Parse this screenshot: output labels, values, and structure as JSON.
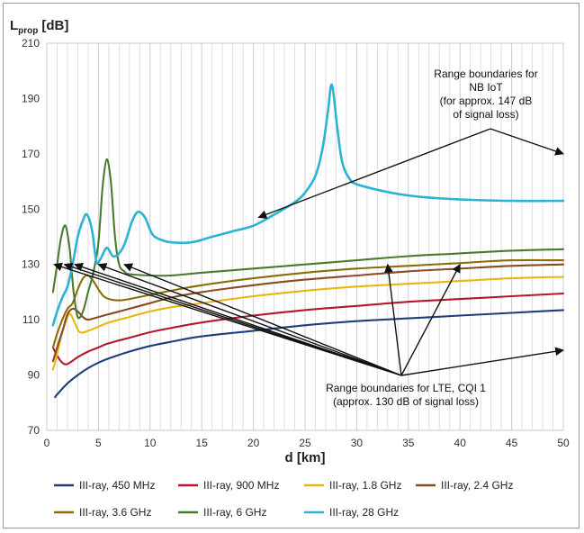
{
  "chart_data": {
    "type": "line",
    "ylabel_main": "L",
    "ylabel_sub": "prop",
    "ylabel_unit": "[dB]",
    "xlabel": "d [km]",
    "xlim": [
      0,
      50
    ],
    "ylim": [
      70,
      210
    ],
    "x_ticks": [
      0,
      5,
      10,
      15,
      20,
      25,
      30,
      35,
      40,
      45,
      50
    ],
    "y_ticks": [
      70,
      90,
      110,
      130,
      150,
      170,
      190,
      210
    ],
    "grid": "vertical, every 1 km",
    "legend_position": "bottom",
    "series": [
      {
        "name": "III-ray, 450 MHz",
        "color": "#1f3f7a",
        "points": [
          [
            0.8,
            82
          ],
          [
            1,
            83
          ],
          [
            2,
            87
          ],
          [
            3,
            90
          ],
          [
            4,
            92.5
          ],
          [
            5,
            94.5
          ],
          [
            6,
            96
          ],
          [
            8,
            98.5
          ],
          [
            10,
            100.5
          ],
          [
            12,
            102
          ],
          [
            15,
            104
          ],
          [
            20,
            106
          ],
          [
            25,
            108
          ],
          [
            30,
            109.5
          ],
          [
            35,
            110.5
          ],
          [
            40,
            111.5
          ],
          [
            45,
            112.5
          ],
          [
            50,
            113.5
          ]
        ]
      },
      {
        "name": "III-ray, 900 MHz",
        "color": "#b5172f",
        "points": [
          [
            0.6,
            100
          ],
          [
            1,
            97
          ],
          [
            1.5,
            94.5
          ],
          [
            2,
            94
          ],
          [
            3,
            96.5
          ],
          [
            4,
            98.5
          ],
          [
            5,
            100
          ],
          [
            6,
            101.5
          ],
          [
            8,
            103.5
          ],
          [
            10,
            105.5
          ],
          [
            12,
            107
          ],
          [
            15,
            109
          ],
          [
            20,
            111.5
          ],
          [
            25,
            113.5
          ],
          [
            30,
            115
          ],
          [
            35,
            116.5
          ],
          [
            40,
            117.5
          ],
          [
            45,
            118.5
          ],
          [
            50,
            119.5
          ]
        ]
      },
      {
        "name": "III-ray, 1.8 GHz",
        "color": "#e8b70f",
        "points": [
          [
            0.6,
            92
          ],
          [
            0.9,
            96
          ],
          [
            1.4,
            104
          ],
          [
            2,
            111
          ],
          [
            2.3,
            112
          ],
          [
            2.7,
            109
          ],
          [
            3.2,
            105.5
          ],
          [
            4,
            106
          ],
          [
            5,
            107.5
          ],
          [
            6,
            109
          ],
          [
            8,
            111
          ],
          [
            10,
            113
          ],
          [
            12,
            114.5
          ],
          [
            15,
            116
          ],
          [
            20,
            118.5
          ],
          [
            25,
            120.5
          ],
          [
            30,
            122
          ],
          [
            35,
            123
          ],
          [
            40,
            124
          ],
          [
            45,
            125
          ],
          [
            50,
            125.5
          ]
        ]
      },
      {
        "name": "III-ray, 2.4 GHz",
        "color": "#8a4a22",
        "points": [
          [
            0.6,
            95
          ],
          [
            1,
            100
          ],
          [
            1.6,
            107
          ],
          [
            2,
            112
          ],
          [
            2.5,
            114
          ],
          [
            3,
            113
          ],
          [
            3.5,
            111
          ],
          [
            4,
            110
          ],
          [
            5,
            111
          ],
          [
            6,
            112
          ],
          [
            8,
            114
          ],
          [
            10,
            116
          ],
          [
            12,
            118
          ],
          [
            15,
            120
          ],
          [
            20,
            122.5
          ],
          [
            25,
            124.5
          ],
          [
            30,
            126
          ],
          [
            35,
            127.5
          ],
          [
            40,
            128.5
          ],
          [
            45,
            129.5
          ],
          [
            50,
            130
          ]
        ]
      },
      {
        "name": "III-ray, 3.6 GHz",
        "color": "#8a6d0b",
        "points": [
          [
            0.6,
            100
          ],
          [
            1,
            105
          ],
          [
            1.5,
            110
          ],
          [
            2,
            114
          ],
          [
            2.5,
            116
          ],
          [
            3,
            121
          ],
          [
            3.5,
            125
          ],
          [
            4,
            126
          ],
          [
            4.5,
            124
          ],
          [
            5,
            121
          ],
          [
            5.5,
            118.5
          ],
          [
            6,
            117.5
          ],
          [
            7,
            117
          ],
          [
            8,
            117.5
          ],
          [
            10,
            119
          ],
          [
            12,
            120.5
          ],
          [
            15,
            122.5
          ],
          [
            20,
            125
          ],
          [
            25,
            127
          ],
          [
            30,
            128.5
          ],
          [
            35,
            129.5
          ],
          [
            40,
            130.5
          ],
          [
            45,
            131.5
          ],
          [
            50,
            131.5
          ]
        ]
      },
      {
        "name": "III-ray, 6 GHz",
        "color": "#4a7a30",
        "points": [
          [
            0.6,
            120
          ],
          [
            1,
            130
          ],
          [
            1.4,
            140
          ],
          [
            1.8,
            144
          ],
          [
            2.2,
            136
          ],
          [
            2.6,
            120
          ],
          [
            3,
            111
          ],
          [
            3.5,
            113
          ],
          [
            4,
            120
          ],
          [
            4.5,
            127
          ],
          [
            5,
            138
          ],
          [
            5.4,
            158
          ],
          [
            5.8,
            168
          ],
          [
            6.2,
            160
          ],
          [
            6.6,
            140
          ],
          [
            7,
            130
          ],
          [
            7.5,
            127.5
          ],
          [
            8,
            126.5
          ],
          [
            10,
            126
          ],
          [
            12,
            126
          ],
          [
            15,
            127
          ],
          [
            20,
            128.5
          ],
          [
            25,
            130
          ],
          [
            30,
            131.5
          ],
          [
            35,
            133
          ],
          [
            40,
            134
          ],
          [
            45,
            135
          ],
          [
            50,
            135.5
          ]
        ]
      },
      {
        "name": "III-ray, 28 GHz",
        "color": "#2ab3d4",
        "points": [
          [
            0.6,
            108
          ],
          [
            1,
            113
          ],
          [
            1.5,
            118
          ],
          [
            2,
            122
          ],
          [
            2.5,
            130
          ],
          [
            3,
            140
          ],
          [
            3.5,
            146
          ],
          [
            3.9,
            148
          ],
          [
            4.4,
            142
          ],
          [
            4.8,
            131
          ],
          [
            5.2,
            132
          ],
          [
            5.8,
            136
          ],
          [
            6.4,
            133
          ],
          [
            7,
            134
          ],
          [
            7.6,
            138
          ],
          [
            8.2,
            145
          ],
          [
            8.8,
            149
          ],
          [
            9.5,
            147
          ],
          [
            10.2,
            141
          ],
          [
            11,
            139
          ],
          [
            12,
            138
          ],
          [
            14,
            138
          ],
          [
            16,
            140
          ],
          [
            18,
            142
          ],
          [
            20,
            144
          ],
          [
            22,
            148
          ],
          [
            24,
            152.5
          ],
          [
            25,
            156
          ],
          [
            26,
            162
          ],
          [
            26.7,
            172
          ],
          [
            27.2,
            185
          ],
          [
            27.6,
            195
          ],
          [
            28.1,
            180
          ],
          [
            28.6,
            167
          ],
          [
            29.3,
            161
          ],
          [
            30,
            159
          ],
          [
            32,
            157
          ],
          [
            34,
            155.5
          ],
          [
            36,
            154.5
          ],
          [
            40,
            153.5
          ],
          [
            45,
            153
          ],
          [
            50,
            153
          ]
        ]
      }
    ],
    "annotations": [
      {
        "text_lines": [
          "Range boundaries for",
          "NB IoT",
          "(for approx. 147 dB",
          "of signal loss)"
        ],
        "arrows_to": [
          [
            20.5,
            147
          ],
          [
            50,
            170
          ]
        ]
      },
      {
        "text_lines": [
          "Range boundaries for LTE, CQI 1",
          "(approx. 130 dB of signal loss)"
        ],
        "arrows_to": [
          [
            0.7,
            130
          ],
          [
            1.7,
            130
          ],
          [
            2.7,
            130
          ],
          [
            5,
            130
          ],
          [
            7.5,
            130
          ],
          [
            33,
            130
          ],
          [
            40,
            130
          ],
          [
            50,
            99
          ]
        ]
      }
    ]
  }
}
